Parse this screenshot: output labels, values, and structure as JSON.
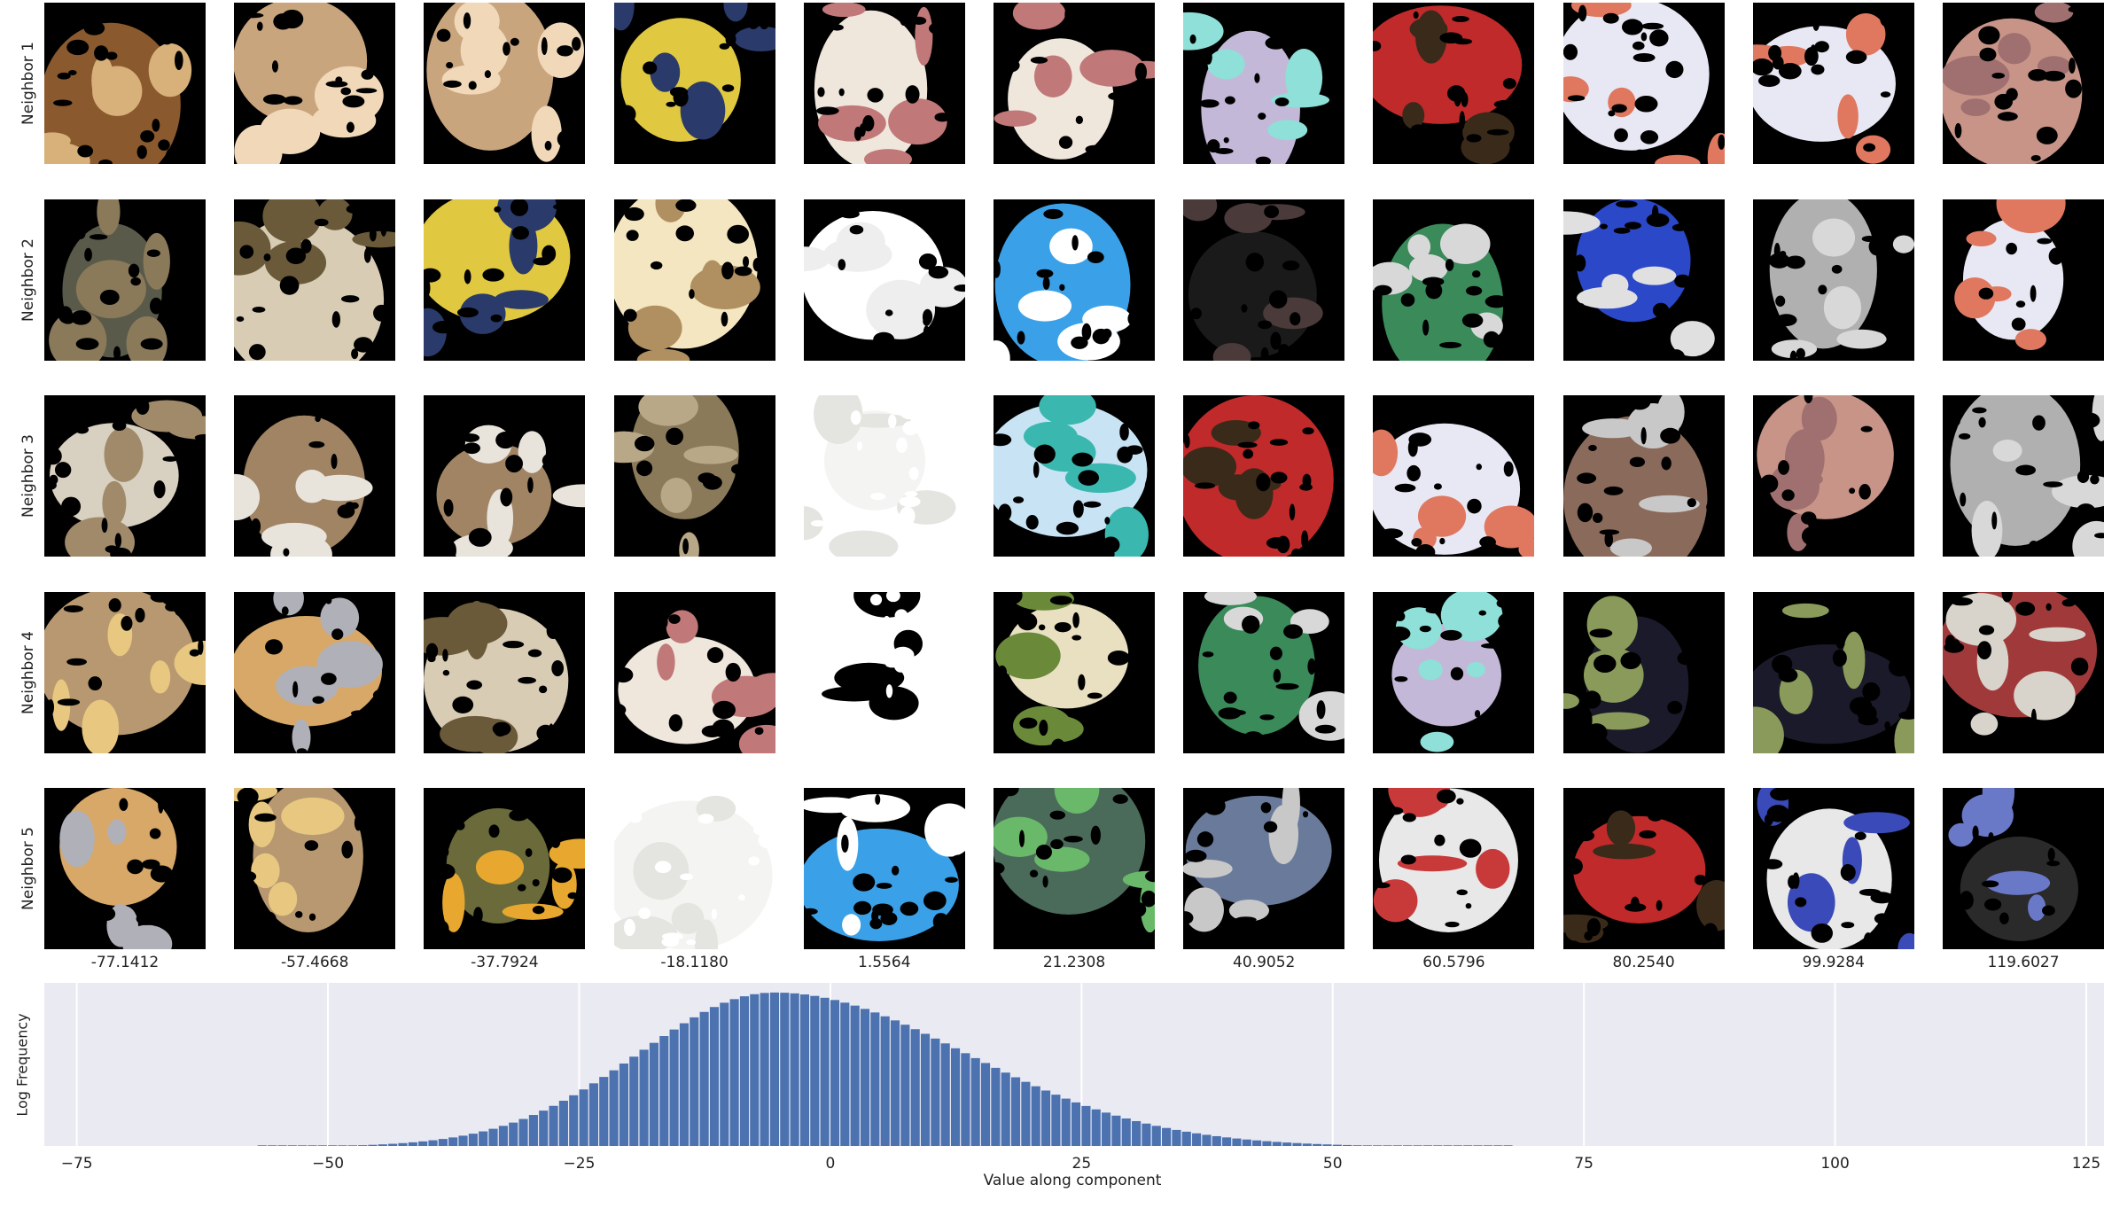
{
  "row_labels": [
    "Neighbor 1",
    "Neighbor 2",
    "Neighbor 3",
    "Neighbor 4",
    "Neighbor 5"
  ],
  "column_values": [
    "-77.1412",
    "-57.4668",
    "-37.7924",
    "-18.1180",
    "1.5564",
    "21.2308",
    "40.9052",
    "60.5796",
    "80.2540",
    "99.9284",
    "119.6027"
  ],
  "tiles": [
    [
      {
        "fill": "#8a5a2e",
        "accent": "#d8b07a",
        "bg": "#000000"
      },
      {
        "fill": "#c9a57e",
        "accent": "#f0d8b8",
        "bg": "#000000"
      },
      {
        "fill": "#c9a57e",
        "accent": "#f0d8b8",
        "bg": "#000000"
      },
      {
        "fill": "#e0c840",
        "accent": "#2a3a6a",
        "bg": "#000000"
      },
      {
        "fill": "#efe6dc",
        "accent": "#c07878",
        "bg": "#000000"
      },
      {
        "fill": "#efe6dc",
        "accent": "#c07878",
        "bg": "#000000"
      },
      {
        "fill": "#c4b8d8",
        "accent": "#8ee0d8",
        "bg": "#000000"
      },
      {
        "fill": "#c02a2a",
        "accent": "#3a2a1a",
        "bg": "#000000"
      },
      {
        "fill": "#e8e8f4",
        "accent": "#e07860",
        "bg": "#000000"
      },
      {
        "fill": "#e8e8f4",
        "accent": "#e07860",
        "bg": "#000000"
      },
      {
        "fill": "#c89488",
        "accent": "#a07070",
        "bg": "#000000"
      }
    ],
    [
      {
        "fill": "#5a5a4a",
        "accent": "#8a7a5a",
        "bg": "#000000"
      },
      {
        "fill": "#d8ccb4",
        "accent": "#6a5a3a",
        "bg": "#000000"
      },
      {
        "fill": "#e0c840",
        "accent": "#2a3a6a",
        "bg": "#000000"
      },
      {
        "fill": "#f4e6c0",
        "accent": "#b09060",
        "bg": "#000000"
      },
      {
        "fill": "#ffffff",
        "accent": "#eeeeee",
        "bg": "#000000"
      },
      {
        "fill": "#3aa0e8",
        "accent": "#ffffff",
        "bg": "#000000"
      },
      {
        "fill": "#1a1a1a",
        "accent": "#4a3a3a",
        "bg": "#000000"
      },
      {
        "fill": "#3a8a5a",
        "accent": "#d8d8d8",
        "bg": "#000000"
      },
      {
        "fill": "#2a48c8",
        "accent": "#e0e0e0",
        "bg": "#000000"
      },
      {
        "fill": "#b0b0b0",
        "accent": "#d8d8d8",
        "bg": "#000000"
      },
      {
        "fill": "#e8e8f4",
        "accent": "#e07860",
        "bg": "#000000"
      }
    ],
    [
      {
        "fill": "#d8d0c0",
        "accent": "#a08a6a",
        "bg": "#000000"
      },
      {
        "fill": "#a08464",
        "accent": "#e8e4dc",
        "bg": "#000000"
      },
      {
        "fill": "#a08464",
        "accent": "#e8e4dc",
        "bg": "#000000"
      },
      {
        "fill": "#8a7a5a",
        "accent": "#b8a888",
        "bg": "#000000"
      },
      {
        "fill": "#f4f4f2",
        "accent": "#e4e4e0",
        "bg": "#ffffff"
      },
      {
        "fill": "#c8e4f4",
        "accent": "#3ab8b0",
        "bg": "#000000"
      },
      {
        "fill": "#c02a2a",
        "accent": "#3a2a1a",
        "bg": "#000000"
      },
      {
        "fill": "#e8e8f4",
        "accent": "#e07860",
        "bg": "#000000"
      },
      {
        "fill": "#8a6a5a",
        "accent": "#c8c8c8",
        "bg": "#000000"
      },
      {
        "fill": "#c89488",
        "accent": "#a07070",
        "bg": "#000000"
      },
      {
        "fill": "#b0b0b0",
        "accent": "#d8d8d8",
        "bg": "#000000"
      }
    ],
    [
      {
        "fill": "#b89870",
        "accent": "#e8c880",
        "bg": "#000000"
      },
      {
        "fill": "#d8a868",
        "accent": "#b0b0b8",
        "bg": "#000000"
      },
      {
        "fill": "#d8ccb4",
        "accent": "#6a5a3a",
        "bg": "#000000"
      },
      {
        "fill": "#efe6dc",
        "accent": "#c07878",
        "bg": "#000000"
      },
      {
        "fill": "#ffffff",
        "accent": "#000000",
        "bg": "#ffffff"
      },
      {
        "fill": "#e8e0c0",
        "accent": "#6a8a3a",
        "bg": "#000000"
      },
      {
        "fill": "#3a8a5a",
        "accent": "#d8d8d8",
        "bg": "#000000"
      },
      {
        "fill": "#c4b8d8",
        "accent": "#8ee0d8",
        "bg": "#000000"
      },
      {
        "fill": "#1a1a2a",
        "accent": "#8a9a5a",
        "bg": "#000000"
      },
      {
        "fill": "#1a1a2a",
        "accent": "#8a9a5a",
        "bg": "#000000"
      },
      {
        "fill": "#a03a3a",
        "accent": "#d8d4cc",
        "bg": "#000000"
      }
    ],
    [
      {
        "fill": "#d8a868",
        "accent": "#b0b0b8",
        "bg": "#000000"
      },
      {
        "fill": "#b89870",
        "accent": "#e8c880",
        "bg": "#000000"
      },
      {
        "fill": "#6a6a3a",
        "accent": "#e8a830",
        "bg": "#000000"
      },
      {
        "fill": "#f4f4f2",
        "accent": "#e4e4e0",
        "bg": "#ffffff"
      },
      {
        "fill": "#3aa0e8",
        "accent": "#ffffff",
        "bg": "#000000"
      },
      {
        "fill": "#4a6a5a",
        "accent": "#6ab86a",
        "bg": "#000000"
      },
      {
        "fill": "#6a7a9a",
        "accent": "#c8c8c8",
        "bg": "#000000"
      },
      {
        "fill": "#e8e8e8",
        "accent": "#c83a3a",
        "bg": "#000000"
      },
      {
        "fill": "#c02a2a",
        "accent": "#3a2a1a",
        "bg": "#000000"
      },
      {
        "fill": "#e8e8e8",
        "accent": "#3a4ab8",
        "bg": "#000000"
      },
      {
        "fill": "#2a2a2a",
        "accent": "#6a78c8",
        "bg": "#000000"
      }
    ]
  ],
  "chart_data": {
    "type": "bar",
    "xlabel": "Value along component",
    "ylabel": "Log Frequency",
    "xlim": [
      -77,
      125
    ],
    "xticks": [
      -75,
      -50,
      -25,
      0,
      25,
      50,
      75,
      100,
      125
    ],
    "grid": true,
    "bar_color": "#4c72b0",
    "panel_color": "#eaeaf2",
    "distribution": {
      "peak_center": -5.5,
      "peak_log_frequency": 1.0,
      "left_sigma": 13.5,
      "right_sigma": 19.0,
      "x_min": -57,
      "x_max": 68
    },
    "bin_width": 1.0
  }
}
